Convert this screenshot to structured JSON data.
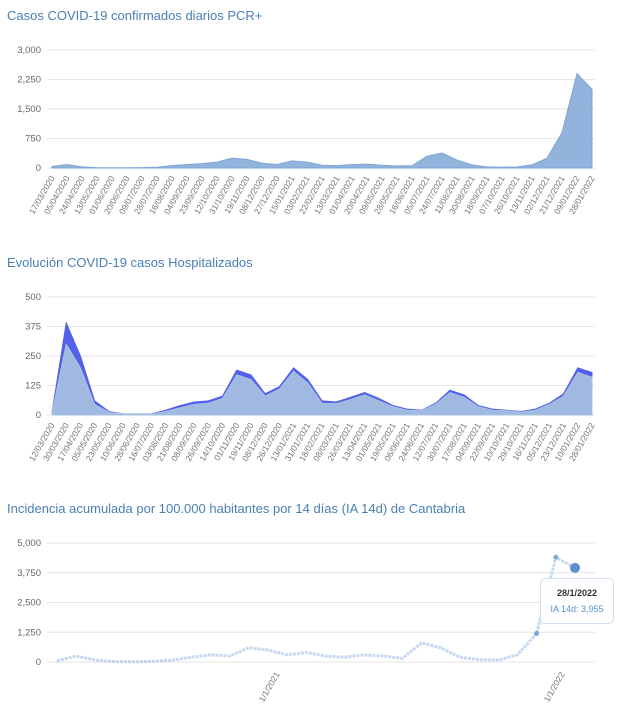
{
  "chart_data": [
    {
      "type": "area",
      "title": "Casos COVID-19 confirmados diarios PCR+",
      "ylim": [
        0,
        3000
      ],
      "yticks": [
        "0",
        "750",
        "1,500",
        "2,250",
        "3,000"
      ],
      "ytick_values": [
        0,
        750,
        1500,
        2250,
        3000
      ],
      "categories": [
        "17/03/2020",
        "05/04/2020",
        "24/04/2020",
        "13/05/2020",
        "01/06/2020",
        "20/06/2020",
        "09/07/2020",
        "28/07/2020",
        "16/08/2020",
        "04/09/2020",
        "23/09/2020",
        "12/10/2020",
        "31/10/2020",
        "19/11/2020",
        "08/12/2020",
        "27/12/2020",
        "15/01/2021",
        "03/02/2021",
        "22/02/2021",
        "13/03/2021",
        "01/04/2021",
        "20/04/2021",
        "09/05/2021",
        "28/05/2021",
        "16/06/2021",
        "05/07/2021",
        "24/07/2021",
        "11/08/2021",
        "30/08/2021",
        "18/09/2021",
        "07/10/2021",
        "26/10/2021",
        "13/11/2021",
        "02/12/2021",
        "21/12/2021",
        "09/01/2022",
        "28/01/2022"
      ],
      "values": [
        40,
        90,
        30,
        10,
        5,
        5,
        10,
        20,
        60,
        90,
        110,
        150,
        250,
        220,
        120,
        90,
        180,
        150,
        70,
        60,
        90,
        100,
        70,
        50,
        60,
        300,
        380,
        200,
        80,
        30,
        20,
        30,
        80,
        250,
        900,
        2400,
        2000
      ],
      "color": "#7fa6d6"
    },
    {
      "type": "area",
      "title": "Evolución COVID-19 casos  Hospitalizados",
      "ylim": [
        0,
        500
      ],
      "yticks": [
        "0",
        "125",
        "250",
        "375",
        "500"
      ],
      "ytick_values": [
        0,
        125,
        250,
        375,
        500
      ],
      "categories": [
        "12/03/2020",
        "30/03/2020",
        "17/04/2020",
        "05/05/2020",
        "23/05/2020",
        "10/06/2020",
        "28/06/2020",
        "16/07/2020",
        "03/08/2020",
        "21/08/2020",
        "08/09/2020",
        "26/09/2020",
        "14/10/2020",
        "01/11/2020",
        "19/11/2020",
        "08/12/2020",
        "26/12/2020",
        "13/01/2021",
        "31/01/2021",
        "18/02/2021",
        "08/03/2021",
        "26/03/2021",
        "13/04/2021",
        "01/05/2021",
        "19/05/2021",
        "06/06/2021",
        "24/06/2021",
        "12/07/2021",
        "30/07/2021",
        "17/08/2021",
        "04/09/2021",
        "22/09/2021",
        "10/10/2021",
        "29/10/2021",
        "16/11/2021",
        "05/12/2021",
        "23/12/2021",
        "10/01/2022",
        "28/01/2022"
      ],
      "series": [
        {
          "values": [
            10,
            390,
            250,
            60,
            15,
            5,
            5,
            5,
            20,
            40,
            55,
            60,
            80,
            190,
            170,
            90,
            120,
            200,
            150,
            60,
            55,
            75,
            95,
            70,
            40,
            25,
            20,
            50,
            105,
            85,
            40,
            25,
            20,
            15,
            25,
            50,
            90,
            200,
            180
          ],
          "color": "#5560e8"
        },
        {
          "values": [
            8,
            300,
            200,
            45,
            12,
            4,
            4,
            4,
            15,
            30,
            45,
            50,
            70,
            170,
            150,
            80,
            110,
            185,
            135,
            50,
            48,
            65,
            85,
            60,
            35,
            20,
            18,
            45,
            95,
            75,
            35,
            20,
            18,
            12,
            20,
            45,
            80,
            180,
            160
          ],
          "color": "#a8c3e0"
        }
      ],
      "accent_colors": [
        "#4aa84a",
        "#e8a04a"
      ]
    },
    {
      "type": "line",
      "title": "Incidencia acumulada por 100.000 habitantes por 14 días (IA 14d) de Cantabria",
      "ylim": [
        0,
        5000
      ],
      "yticks": [
        "0",
        "1,250",
        "2,500",
        "3,750",
        "5,000"
      ],
      "ytick_values": [
        0,
        1250,
        2500,
        3750,
        5000
      ],
      "xlabels": [
        "1/1/2021",
        "1/1/2022"
      ],
      "x_range": [
        "1/3/2020",
        "28/1/2022"
      ],
      "values": [
        50,
        250,
        80,
        20,
        10,
        30,
        80,
        200,
        300,
        250,
        600,
        500,
        300,
        400,
        250,
        200,
        300,
        250,
        150,
        800,
        600,
        200,
        100,
        80,
        300,
        1200,
        4400,
        3955
      ],
      "color": "#5b8fd0",
      "tooltip": {
        "date": "28/1/2022",
        "label": "IA 14d: 3,955"
      }
    }
  ]
}
